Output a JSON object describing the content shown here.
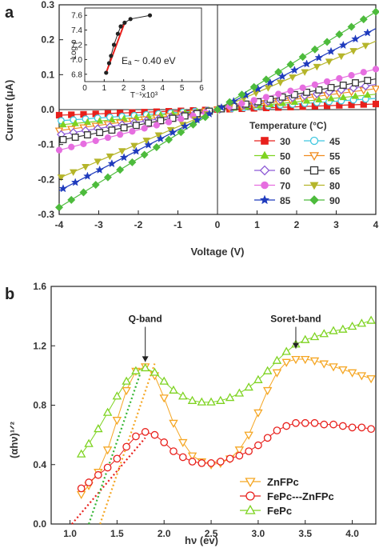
{
  "figure": {
    "panel_a_label": "a",
    "panel_b_label": "b"
  },
  "chart_data": [
    {
      "panel": "a",
      "type": "line",
      "xlabel": "Voltage (V)",
      "ylabel": "Current (μA)",
      "xlim": [
        -4,
        4
      ],
      "ylim": [
        -0.3,
        0.3
      ],
      "x_ticks": [
        "-4",
        "-3",
        "-2",
        "-1",
        "0",
        "1",
        "2",
        "3",
        "4"
      ],
      "y_ticks": [
        "-0.3",
        "-0.2",
        "-0.1",
        "0.0",
        "0.1",
        "0.2",
        "0.3"
      ],
      "legend_title": "Temperature (°C)",
      "legend_position": "bottom-right",
      "series": [
        {
          "name": "30",
          "marker": "square-filled",
          "color": "#e8201c",
          "slope": 0.004
        },
        {
          "name": "45",
          "marker": "circle-open",
          "color": "#3fc7e0",
          "slope": 0.008
        },
        {
          "name": "50",
          "marker": "triangle-up-filled",
          "color": "#7ed321",
          "slope": 0.011
        },
        {
          "name": "55",
          "marker": "triangle-down-open",
          "color": "#f08c1e",
          "slope": 0.015
        },
        {
          "name": "60",
          "marker": "diamond-open",
          "color": "#8e5bd6",
          "slope": 0.018
        },
        {
          "name": "65",
          "marker": "square-open",
          "color": "#333333",
          "slope": 0.022
        },
        {
          "name": "70",
          "marker": "circle-filled",
          "color": "#e66ee0",
          "slope": 0.029
        },
        {
          "name": "80",
          "marker": "triangle-down-filled",
          "color": "#b5b52a",
          "slope": 0.049
        },
        {
          "name": "85",
          "marker": "star",
          "color": "#1f3bbd",
          "slope": 0.058
        },
        {
          "name": "90",
          "marker": "diamond-filled",
          "color": "#4dbb3c",
          "slope": 0.07
        }
      ],
      "inset": {
        "type": "scatter",
        "xlabel": "T⁻¹x10³",
        "ylabel": "Log ρ",
        "annotation": "Eₐ ~ 0.40 eV",
        "xlim": [
          0,
          6
        ],
        "ylim": [
          6.7,
          7.7
        ],
        "x_ticks": [
          "0",
          "1",
          "2",
          "3",
          "4",
          "5",
          "6"
        ],
        "y_ticks": [
          "6.8",
          "7.0",
          "7.2",
          "7.4",
          "7.6"
        ],
        "points": [
          [
            1.1,
            6.82
          ],
          [
            1.25,
            6.95
          ],
          [
            1.35,
            7.05
          ],
          [
            1.5,
            7.2
          ],
          [
            1.7,
            7.35
          ],
          [
            1.85,
            7.45
          ],
          [
            2.05,
            7.5
          ],
          [
            2.35,
            7.55
          ],
          [
            3.35,
            7.6
          ]
        ],
        "fit_color": "#e8201c"
      }
    },
    {
      "panel": "b",
      "type": "line",
      "xlabel": "hν (ev)",
      "ylabel": "(αhν)¹ᐟ²",
      "xlim": [
        0.8,
        4.25
      ],
      "ylim": [
        0,
        1.6
      ],
      "x_ticks": [
        "1.0",
        "1.5",
        "2.0",
        "2.5",
        "3.0",
        "3.5",
        "4.0"
      ],
      "y_ticks": [
        "0.0",
        "0.4",
        "0.8",
        "1.2",
        "1.6"
      ],
      "legend_position": "bottom-center",
      "annotations": [
        {
          "text": "Q-band",
          "x": 1.8,
          "y": 1.36
        },
        {
          "text": "Soret-band",
          "x": 3.4,
          "y": 1.36
        }
      ],
      "series": [
        {
          "name": "ZnFPc",
          "marker": "triangle-down-open",
          "color": "#f5a623",
          "x": [
            1.12,
            1.2,
            1.3,
            1.4,
            1.5,
            1.6,
            1.7,
            1.8,
            1.9,
            2.0,
            2.1,
            2.2,
            2.3,
            2.4,
            2.5,
            2.6,
            2.7,
            2.8,
            2.9,
            3.0,
            3.1,
            3.2,
            3.3,
            3.4,
            3.5,
            3.6,
            3.7,
            3.8,
            3.9,
            4.0,
            4.1,
            4.2
          ],
          "y": [
            0.2,
            0.26,
            0.35,
            0.5,
            0.7,
            0.9,
            1.03,
            1.06,
            1.0,
            0.85,
            0.68,
            0.55,
            0.46,
            0.42,
            0.4,
            0.41,
            0.44,
            0.5,
            0.6,
            0.75,
            0.9,
            1.02,
            1.09,
            1.11,
            1.11,
            1.1,
            1.08,
            1.06,
            1.04,
            1.02,
            1.0,
            0.98
          ]
        },
        {
          "name": "FePc---ZnFPc",
          "marker": "circle-open",
          "color": "#e8201c",
          "x": [
            1.12,
            1.2,
            1.3,
            1.4,
            1.5,
            1.6,
            1.7,
            1.8,
            1.9,
            2.0,
            2.1,
            2.2,
            2.3,
            2.4,
            2.5,
            2.6,
            2.7,
            2.8,
            2.9,
            3.0,
            3.1,
            3.2,
            3.3,
            3.4,
            3.5,
            3.6,
            3.7,
            3.8,
            3.9,
            4.0,
            4.1,
            4.2
          ],
          "y": [
            0.24,
            0.28,
            0.33,
            0.38,
            0.44,
            0.52,
            0.59,
            0.62,
            0.6,
            0.55,
            0.49,
            0.45,
            0.42,
            0.41,
            0.41,
            0.42,
            0.44,
            0.46,
            0.49,
            0.53,
            0.58,
            0.63,
            0.66,
            0.68,
            0.68,
            0.68,
            0.67,
            0.67,
            0.66,
            0.65,
            0.65,
            0.64
          ]
        },
        {
          "name": "FePc",
          "marker": "triangle-up-open",
          "color": "#7ed321",
          "x": [
            1.12,
            1.2,
            1.3,
            1.4,
            1.5,
            1.6,
            1.7,
            1.8,
            1.9,
            2.0,
            2.1,
            2.2,
            2.3,
            2.4,
            2.5,
            2.6,
            2.7,
            2.8,
            2.9,
            3.0,
            3.1,
            3.2,
            3.3,
            3.4,
            3.5,
            3.6,
            3.7,
            3.8,
            3.9,
            4.0,
            4.1,
            4.2
          ],
          "y": [
            0.47,
            0.54,
            0.64,
            0.75,
            0.86,
            0.96,
            1.03,
            1.05,
            1.02,
            0.96,
            0.9,
            0.86,
            0.83,
            0.82,
            0.82,
            0.83,
            0.85,
            0.88,
            0.92,
            0.97,
            1.03,
            1.1,
            1.16,
            1.21,
            1.24,
            1.26,
            1.28,
            1.3,
            1.31,
            1.33,
            1.35,
            1.37
          ]
        }
      ],
      "tangent_lines": [
        {
          "series": "ZnFPc",
          "color": "#f5a623",
          "x": [
            1.32,
            1.9
          ],
          "y": [
            0.0,
            1.08
          ]
        },
        {
          "series": "FePc---ZnFPc",
          "color": "#e8201c",
          "x": [
            1.02,
            1.8
          ],
          "y": [
            0.0,
            0.58
          ]
        },
        {
          "series": "FePc",
          "color": "#35b534",
          "x": [
            1.2,
            1.75
          ],
          "y": [
            0.0,
            1.02
          ]
        }
      ]
    }
  ]
}
